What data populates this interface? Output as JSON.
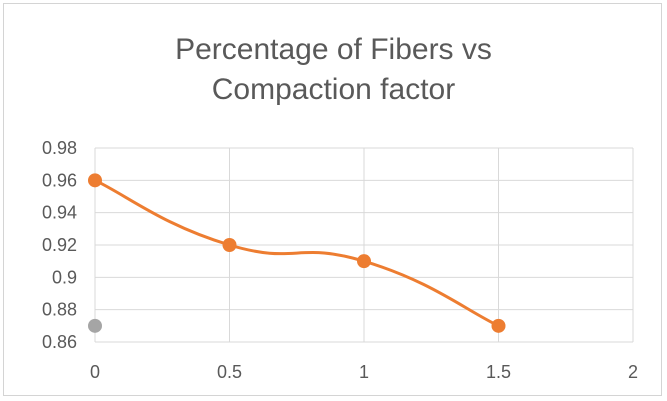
{
  "chart_data": {
    "type": "line",
    "title": "Percentage of Fibers vs Compaction factor",
    "title_lines": [
      "Percentage of Fibers vs",
      "Compaction factor"
    ],
    "xlabel": "",
    "ylabel": "",
    "xlim": [
      0,
      2
    ],
    "ylim": [
      0.86,
      0.98
    ],
    "x_ticks": [
      "0",
      "0.5",
      "1",
      "1.5",
      "2"
    ],
    "y_ticks": [
      "0.98",
      "0.96",
      "0.94",
      "0.92",
      "0.9",
      "0.88",
      "0.86"
    ],
    "grid": true,
    "legend": "none",
    "series": [
      {
        "color": "#ed7d31",
        "smooth": true,
        "points": [
          {
            "x": 0,
            "y": 0.96
          },
          {
            "x": 0.5,
            "y": 0.92
          },
          {
            "x": 1,
            "y": 0.91
          },
          {
            "x": 1.5,
            "y": 0.87
          }
        ]
      },
      {
        "color": "#a5a5a5",
        "points": [
          {
            "x": 0,
            "y": 0.87
          }
        ]
      }
    ]
  }
}
